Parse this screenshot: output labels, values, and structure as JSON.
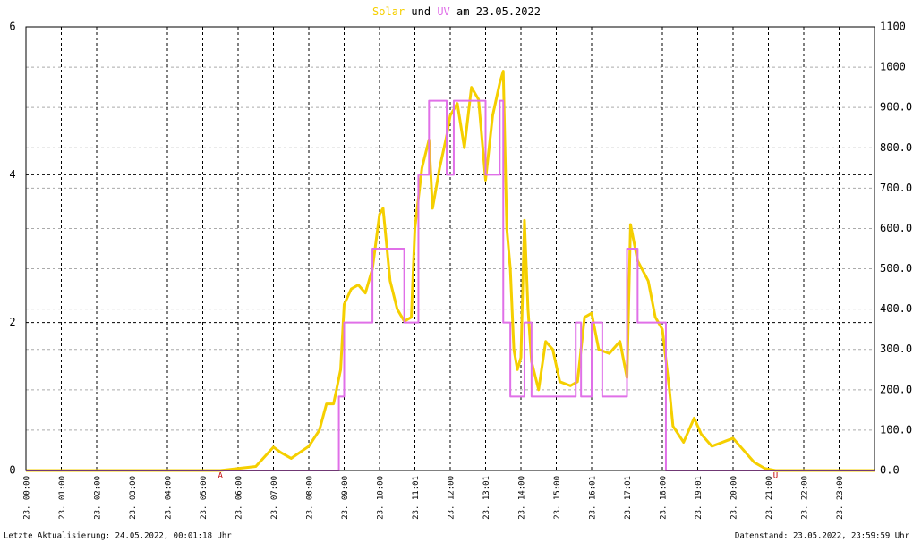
{
  "chart_data": {
    "type": "line",
    "title_joiner": "und",
    "title_suffix": "am 23.05.2022",
    "footer_left": "Letzte Aktualisierung: 24.05.2022, 00:01:18 Uhr",
    "footer_right": "Datenstand: 23.05.2022, 23:59:59 Uhr",
    "xlim": [
      0,
      24
    ],
    "xticks": [
      {
        "value": 0,
        "label": "23. 00:00"
      },
      {
        "value": 1,
        "label": "23. 01:00"
      },
      {
        "value": 2,
        "label": "23. 02:00"
      },
      {
        "value": 3,
        "label": "23. 03:00"
      },
      {
        "value": 4,
        "label": "23. 04:00"
      },
      {
        "value": 5,
        "label": "23. 05:00"
      },
      {
        "value": 6,
        "label": "23. 06:00"
      },
      {
        "value": 7,
        "label": "23. 07:00"
      },
      {
        "value": 8,
        "label": "23. 08:00"
      },
      {
        "value": 9,
        "label": "23. 09:00"
      },
      {
        "value": 10,
        "label": "23. 10:00"
      },
      {
        "value": 11,
        "label": "23. 11:01"
      },
      {
        "value": 12,
        "label": "23. 12:00"
      },
      {
        "value": 13,
        "label": "23. 13:01"
      },
      {
        "value": 14,
        "label": "23. 14:00"
      },
      {
        "value": 15,
        "label": "23. 15:00"
      },
      {
        "value": 16,
        "label": "23. 16:01"
      },
      {
        "value": 17,
        "label": "23. 17:01"
      },
      {
        "value": 18,
        "label": "23. 18:00"
      },
      {
        "value": 19,
        "label": "23. 19:01"
      },
      {
        "value": 20,
        "label": "23. 20:00"
      },
      {
        "value": 21,
        "label": "23. 21:00"
      },
      {
        "value": 22,
        "label": "23. 22:00"
      },
      {
        "value": 23,
        "label": "23. 23:00"
      }
    ],
    "ylim": [
      0,
      6
    ],
    "yticks": [
      0,
      2,
      4,
      6
    ],
    "y2lim": [
      0,
      1100
    ],
    "y2ticks": [
      {
        "value": 0,
        "label": "0.0"
      },
      {
        "value": 100,
        "label": "100.0"
      },
      {
        "value": 200,
        "label": "200.0"
      },
      {
        "value": 300,
        "label": "300.0"
      },
      {
        "value": 400,
        "label": "400.0"
      },
      {
        "value": 500,
        "label": "500.0"
      },
      {
        "value": 600,
        "label": "600.0"
      },
      {
        "value": 700,
        "label": "700.0"
      },
      {
        "value": 800,
        "label": "800.0"
      },
      {
        "value": 900,
        "label": "900.0"
      },
      {
        "value": 1000,
        "label": "1000"
      },
      {
        "value": 1100,
        "label": "1100"
      }
    ],
    "grid": true,
    "markers": [
      {
        "x": 5.5,
        "label": "A"
      },
      {
        "x": 21.2,
        "label": "U"
      }
    ],
    "series": [
      {
        "name": "Solar",
        "color": "#f5cf00",
        "axis": "y2",
        "x": [
          0,
          5.5,
          6.0,
          6.5,
          7.0,
          7.2,
          7.5,
          8.0,
          8.3,
          8.5,
          8.7,
          8.9,
          9.0,
          9.2,
          9.4,
          9.6,
          9.8,
          10.0,
          10.1,
          10.3,
          10.5,
          10.7,
          10.9,
          11.0,
          11.2,
          11.4,
          11.5,
          11.7,
          11.9,
          12.0,
          12.2,
          12.4,
          12.6,
          12.8,
          13.0,
          13.2,
          13.4,
          13.5,
          13.6,
          13.7,
          13.8,
          13.9,
          14.0,
          14.1,
          14.2,
          14.3,
          14.5,
          14.7,
          14.9,
          15.1,
          15.4,
          15.6,
          15.8,
          16.0,
          16.2,
          16.5,
          16.8,
          17.0,
          17.1,
          17.3,
          17.6,
          17.8,
          18.0,
          18.2,
          18.3,
          18.6,
          18.9,
          19.1,
          19.4,
          19.7,
          20.0,
          20.2,
          20.6,
          20.9,
          21.2,
          24
        ],
        "values": [
          0,
          0,
          5,
          10,
          58,
          45,
          30,
          60,
          100,
          165,
          165,
          250,
          412,
          450,
          460,
          440,
          500,
          635,
          650,
          470,
          400,
          370,
          380,
          600,
          750,
          820,
          650,
          750,
          830,
          880,
          910,
          800,
          950,
          920,
          720,
          880,
          960,
          990,
          600,
          500,
          300,
          250,
          280,
          620,
          400,
          270,
          200,
          320,
          300,
          220,
          210,
          220,
          380,
          390,
          300,
          290,
          320,
          230,
          610,
          520,
          470,
          380,
          350,
          200,
          110,
          70,
          130,
          90,
          60,
          70,
          80,
          60,
          20,
          5,
          0,
          0
        ]
      },
      {
        "name": "UV",
        "color": "#e070e8",
        "axis": "y",
        "step": true,
        "x": [
          0,
          8.85,
          9.0,
          9.8,
          10.7,
          11.1,
          11.4,
          11.9,
          12.1,
          13.0,
          13.4,
          13.5,
          13.7,
          14.1,
          14.3,
          15.55,
          15.7,
          16.0,
          16.3,
          17.0,
          17.3,
          18.1,
          24
        ],
        "values": [
          0,
          1,
          2,
          3,
          2,
          4,
          5,
          4,
          5,
          4,
          5,
          2,
          1,
          2,
          1,
          2,
          1,
          2,
          1,
          3,
          2,
          0,
          0
        ]
      }
    ]
  }
}
